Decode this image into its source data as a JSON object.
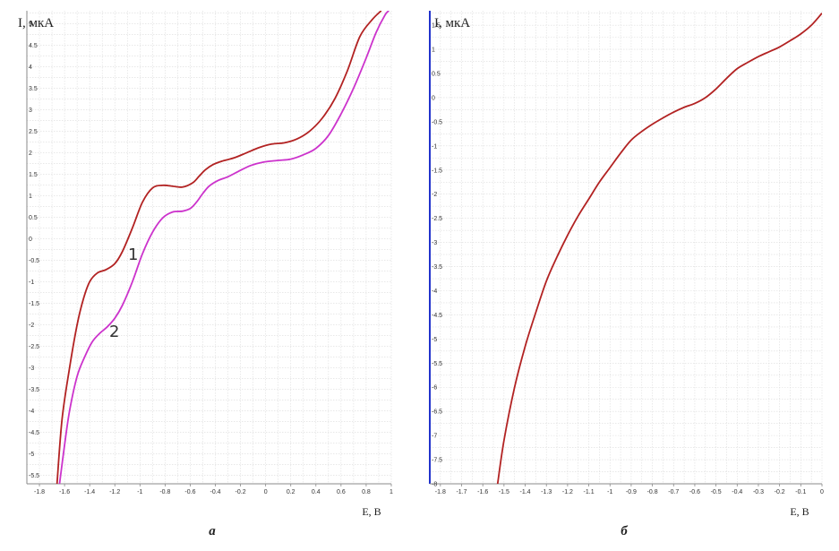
{
  "panel_letters": [
    "а",
    "б"
  ],
  "chart_data": [
    {
      "type": "line",
      "panel": "а",
      "ylabel": "I, мкА",
      "xlabel": "E, В",
      "xlim": [
        -1.9,
        1.0
      ],
      "ylim": [
        -5.7,
        5.3
      ],
      "x_ticks": [
        -1.8,
        -1.6,
        -1.4,
        -1.2,
        -1,
        -0.8,
        -0.6,
        -0.4,
        -0.2,
        0,
        0.2,
        0.4,
        0.6,
        0.8,
        1
      ],
      "y_ticks": [
        5,
        4.5,
        4,
        3.5,
        3,
        2.5,
        2,
        1.5,
        1,
        0.5,
        0,
        -0.5,
        -1,
        -1.5,
        -2,
        -2.5,
        -3,
        -3.5,
        -4,
        -4.5,
        -5,
        -5.5
      ],
      "grid": true,
      "series": [
        {
          "name": "1",
          "color": "#b22222",
          "x": [
            -1.66,
            -1.62,
            -1.56,
            -1.5,
            -1.45,
            -1.4,
            -1.34,
            -1.27,
            -1.2,
            -1.14,
            -1.06,
            -0.98,
            -0.9,
            -0.82,
            -0.74,
            -0.66,
            -0.58,
            -0.53,
            -0.48,
            -0.42,
            -0.35,
            -0.25,
            -0.15,
            -0.05,
            0.05,
            0.15,
            0.25,
            0.35,
            0.45,
            0.55,
            0.65,
            0.75,
            0.85,
            0.92
          ],
          "values": [
            -5.7,
            -4.2,
            -3.0,
            -2.0,
            -1.4,
            -1.0,
            -0.8,
            -0.72,
            -0.58,
            -0.3,
            0.25,
            0.85,
            1.18,
            1.24,
            1.22,
            1.2,
            1.3,
            1.45,
            1.6,
            1.72,
            1.8,
            1.88,
            2.0,
            2.12,
            2.2,
            2.23,
            2.32,
            2.5,
            2.8,
            3.25,
            3.9,
            4.7,
            5.1,
            5.3
          ]
        },
        {
          "name": "2",
          "color": "#cc33cc",
          "x": [
            -1.64,
            -1.6,
            -1.56,
            -1.5,
            -1.44,
            -1.38,
            -1.32,
            -1.26,
            -1.2,
            -1.14,
            -1.06,
            -0.98,
            -0.9,
            -0.82,
            -0.74,
            -0.66,
            -0.6,
            -0.55,
            -0.5,
            -0.45,
            -0.38,
            -0.3,
            -0.22,
            -0.12,
            -0.02,
            0.1,
            0.2,
            0.3,
            0.4,
            0.5,
            0.6,
            0.7,
            0.8,
            0.88,
            0.95,
            0.98
          ],
          "values": [
            -5.7,
            -4.8,
            -4.0,
            -3.2,
            -2.75,
            -2.4,
            -2.2,
            -2.05,
            -1.85,
            -1.55,
            -1.0,
            -0.35,
            0.15,
            0.48,
            0.62,
            0.64,
            0.7,
            0.85,
            1.05,
            1.22,
            1.35,
            1.44,
            1.56,
            1.7,
            1.78,
            1.82,
            1.85,
            1.95,
            2.1,
            2.4,
            2.9,
            3.5,
            4.2,
            4.8,
            5.2,
            5.3
          ]
        }
      ]
    },
    {
      "type": "line",
      "panel": "б",
      "ylabel": "I, мкА",
      "xlabel": "E, В",
      "xlim": [
        -1.85,
        0.0
      ],
      "ylim": [
        -8.0,
        1.8
      ],
      "x_ticks": [
        -1.8,
        -1.7,
        -1.6,
        -1.5,
        -1.4,
        -1.3,
        -1.2,
        -1.1,
        -1,
        -0.9,
        -0.8,
        -0.7,
        -0.6,
        -0.5,
        -0.4,
        -0.3,
        -0.2,
        -0.1,
        0
      ],
      "y_ticks": [
        1.5,
        1,
        0.5,
        0,
        -0.5,
        -1,
        -1.5,
        -2,
        -2.5,
        -3,
        -3.5,
        -4,
        -4.5,
        -5,
        -5.5,
        -6,
        -6.5,
        -7,
        -7.5,
        -8
      ],
      "grid": true,
      "series": [
        {
          "color": "#b22222",
          "x": [
            -1.53,
            -1.5,
            -1.45,
            -1.4,
            -1.35,
            -1.3,
            -1.25,
            -1.2,
            -1.15,
            -1.1,
            -1.05,
            -1.0,
            -0.95,
            -0.9,
            -0.85,
            -0.8,
            -0.75,
            -0.7,
            -0.65,
            -0.6,
            -0.55,
            -0.5,
            -0.45,
            -0.4,
            -0.35,
            -0.3,
            -0.25,
            -0.2,
            -0.15,
            -0.1,
            -0.05,
            0.0
          ],
          "values": [
            -8.0,
            -7.1,
            -6.0,
            -5.15,
            -4.45,
            -3.8,
            -3.3,
            -2.85,
            -2.45,
            -2.1,
            -1.75,
            -1.45,
            -1.15,
            -0.88,
            -0.7,
            -0.55,
            -0.42,
            -0.3,
            -0.2,
            -0.12,
            0.0,
            0.18,
            0.4,
            0.6,
            0.73,
            0.85,
            0.95,
            1.05,
            1.18,
            1.32,
            1.5,
            1.75
          ]
        }
      ]
    }
  ]
}
